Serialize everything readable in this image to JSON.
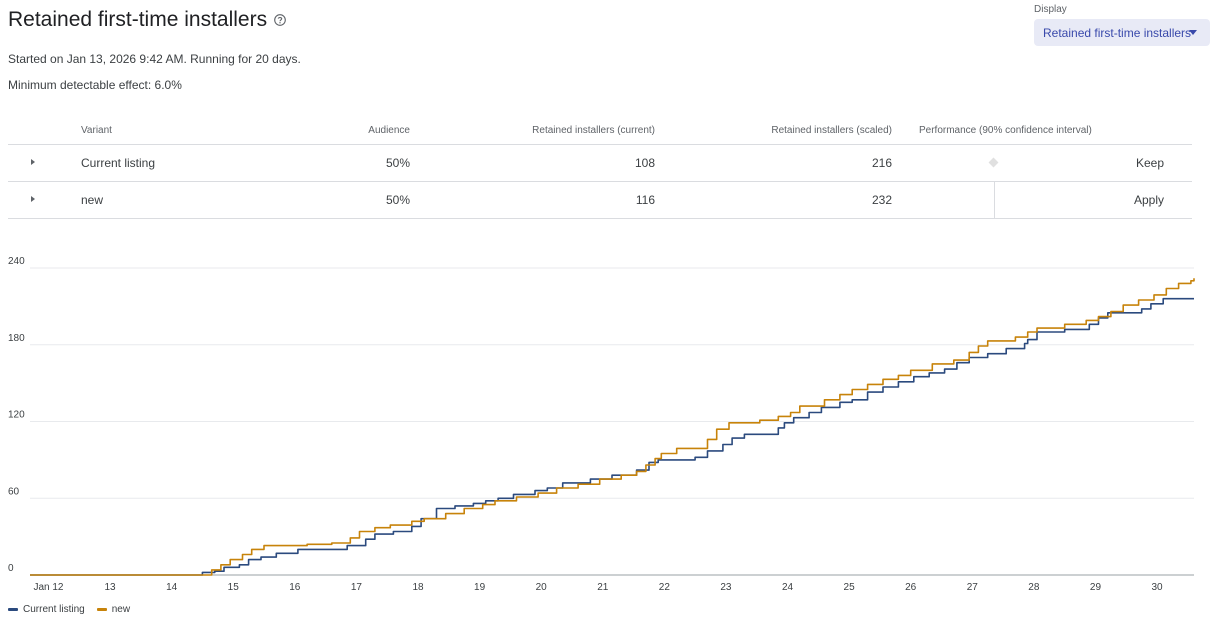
{
  "header": {
    "title": "Retained first-time installers",
    "started": "Started on Jan 13, 2026 9:42 AM. Running for 20 days.",
    "mde": "Minimum detectable effect: 6.0%"
  },
  "display": {
    "label": "Display",
    "selected": "Retained first-time installers"
  },
  "table": {
    "columns": {
      "variant": "Variant",
      "audience": "Audience",
      "current": "Retained installers (current)",
      "scaled": "Retained installers (scaled)",
      "performance": "Performance (90% confidence interval)"
    },
    "rows": [
      {
        "variant": "Current listing",
        "audience": "50%",
        "current": "108",
        "scaled": "216",
        "action": "Keep"
      },
      {
        "variant": "new",
        "audience": "50%",
        "current": "116",
        "scaled": "232",
        "action": "Apply"
      }
    ]
  },
  "colors": {
    "current": "#2b4a7e",
    "new": "#c7830a",
    "grid": "#e8eaed",
    "axis_text": "#3c4043"
  },
  "chart_data": {
    "type": "line",
    "x_tick_labels": [
      "Jan 12",
      "13",
      "14",
      "15",
      "16",
      "17",
      "18",
      "19",
      "20",
      "21",
      "22",
      "23",
      "24",
      "25",
      "26",
      "27",
      "28",
      "29",
      "30"
    ],
    "xlim": [
      "Jan 12",
      "Jan 30"
    ],
    "y_ticks": [
      0,
      60,
      120,
      180,
      240
    ],
    "ylim": [
      0,
      240
    ],
    "grid": true,
    "legend_position": "bottom-left",
    "series": [
      {
        "name": "Current listing",
        "color": "#2b4a7e",
        "points": [
          [
            11.7,
            0
          ],
          [
            14.4,
            0
          ],
          [
            14.5,
            2
          ],
          [
            14.7,
            3
          ],
          [
            14.85,
            6
          ],
          [
            15.1,
            8
          ],
          [
            15.25,
            12
          ],
          [
            15.45,
            14
          ],
          [
            15.7,
            17
          ],
          [
            16.05,
            20
          ],
          [
            16.3,
            20
          ],
          [
            16.85,
            23
          ],
          [
            17.15,
            28
          ],
          [
            17.3,
            32
          ],
          [
            17.6,
            34
          ],
          [
            17.9,
            38
          ],
          [
            18.05,
            44
          ],
          [
            18.3,
            52
          ],
          [
            18.6,
            54
          ],
          [
            18.9,
            56
          ],
          [
            19.1,
            58
          ],
          [
            19.3,
            60
          ],
          [
            19.55,
            63
          ],
          [
            19.9,
            66
          ],
          [
            20.1,
            68
          ],
          [
            20.35,
            72
          ],
          [
            20.8,
            75
          ],
          [
            21.15,
            78
          ],
          [
            21.55,
            82
          ],
          [
            21.75,
            88
          ],
          [
            21.9,
            90
          ],
          [
            22.5,
            92
          ],
          [
            22.7,
            97
          ],
          [
            22.95,
            102
          ],
          [
            23.1,
            107
          ],
          [
            23.3,
            110
          ],
          [
            23.85,
            115
          ],
          [
            23.95,
            119
          ],
          [
            24.1,
            123
          ],
          [
            24.35,
            127
          ],
          [
            24.55,
            131
          ],
          [
            24.85,
            135
          ],
          [
            25.05,
            137
          ],
          [
            25.3,
            143
          ],
          [
            25.55,
            147
          ],
          [
            25.8,
            151
          ],
          [
            26.05,
            155
          ],
          [
            26.3,
            158
          ],
          [
            26.55,
            161
          ],
          [
            26.75,
            166
          ],
          [
            26.95,
            170
          ],
          [
            27.25,
            173
          ],
          [
            27.55,
            177
          ],
          [
            27.85,
            181
          ],
          [
            27.9,
            184
          ],
          [
            28.05,
            190
          ],
          [
            28.5,
            192
          ],
          [
            28.9,
            196
          ],
          [
            29.05,
            201
          ],
          [
            29.2,
            205
          ],
          [
            29.75,
            208
          ],
          [
            29.9,
            212
          ],
          [
            30.1,
            216
          ],
          [
            30.6,
            216
          ]
        ]
      },
      {
        "name": "new",
        "color": "#c7830a",
        "points": [
          [
            11.7,
            0
          ],
          [
            14.55,
            0
          ],
          [
            14.65,
            4
          ],
          [
            14.8,
            8
          ],
          [
            14.95,
            12
          ],
          [
            15.15,
            16
          ],
          [
            15.3,
            20
          ],
          [
            15.5,
            23
          ],
          [
            15.85,
            23
          ],
          [
            16.2,
            24
          ],
          [
            16.6,
            25
          ],
          [
            16.9,
            29
          ],
          [
            17.05,
            34
          ],
          [
            17.3,
            37
          ],
          [
            17.55,
            39
          ],
          [
            17.9,
            42
          ],
          [
            18.1,
            44
          ],
          [
            18.45,
            48
          ],
          [
            18.75,
            52
          ],
          [
            19.05,
            55
          ],
          [
            19.25,
            58
          ],
          [
            19.6,
            61
          ],
          [
            19.95,
            64
          ],
          [
            20.25,
            68
          ],
          [
            20.6,
            71
          ],
          [
            20.95,
            75
          ],
          [
            21.3,
            78
          ],
          [
            21.55,
            81
          ],
          [
            21.7,
            86
          ],
          [
            21.85,
            91
          ],
          [
            21.95,
            95
          ],
          [
            22.2,
            99
          ],
          [
            22.7,
            106
          ],
          [
            22.85,
            114
          ],
          [
            23.05,
            119
          ],
          [
            23.55,
            121
          ],
          [
            23.85,
            124
          ],
          [
            24.05,
            127
          ],
          [
            24.2,
            132
          ],
          [
            24.6,
            137
          ],
          [
            24.85,
            141
          ],
          [
            25.05,
            145
          ],
          [
            25.3,
            149
          ],
          [
            25.55,
            153
          ],
          [
            25.8,
            156
          ],
          [
            26.0,
            160
          ],
          [
            26.35,
            165
          ],
          [
            26.7,
            168
          ],
          [
            26.95,
            174
          ],
          [
            27.1,
            179
          ],
          [
            27.25,
            183
          ],
          [
            27.7,
            186
          ],
          [
            27.9,
            190
          ],
          [
            28.05,
            193
          ],
          [
            28.5,
            196
          ],
          [
            28.85,
            199
          ],
          [
            29.05,
            202
          ],
          [
            29.25,
            206
          ],
          [
            29.45,
            211
          ],
          [
            29.7,
            215
          ],
          [
            29.95,
            219
          ],
          [
            30.15,
            224
          ],
          [
            30.35,
            228
          ],
          [
            30.55,
            230
          ],
          [
            30.6,
            232
          ]
        ]
      }
    ]
  }
}
